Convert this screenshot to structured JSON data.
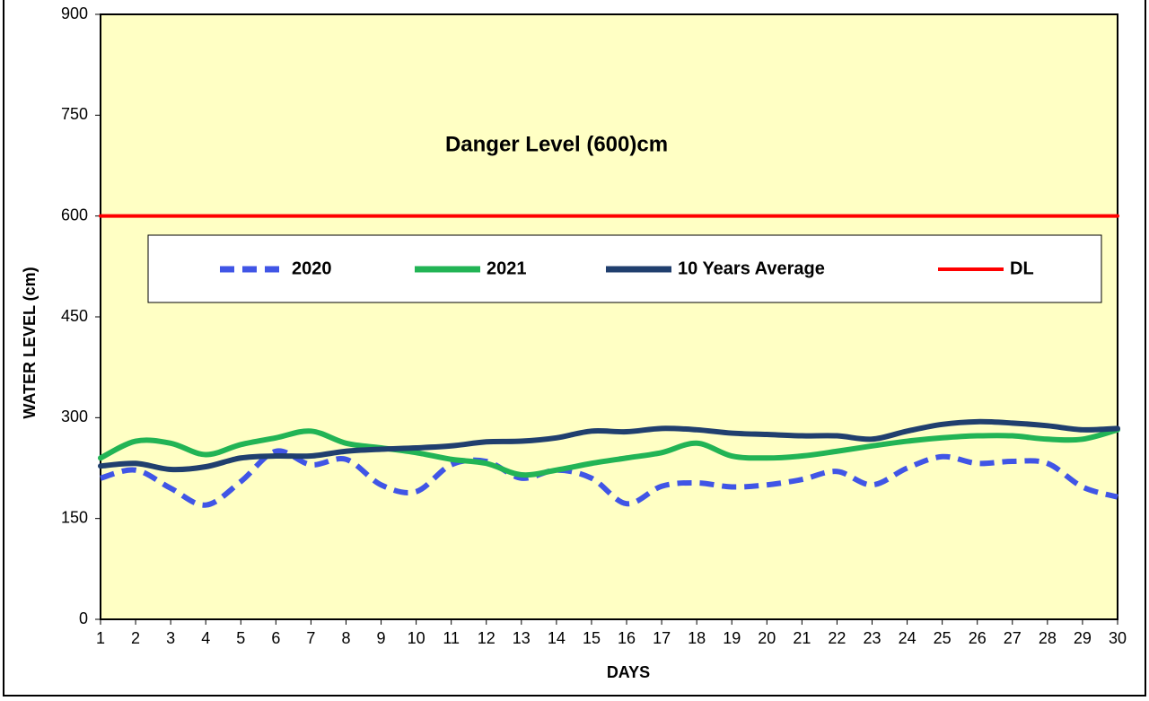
{
  "chart_data": {
    "type": "line",
    "annotation": "Danger Level (600)cm",
    "x_label": "DAYS",
    "y_label": "WATER LEVEL (cm)",
    "x": [
      1,
      2,
      3,
      4,
      5,
      6,
      7,
      8,
      9,
      10,
      11,
      12,
      13,
      14,
      15,
      16,
      17,
      18,
      19,
      20,
      21,
      22,
      23,
      24,
      25,
      26,
      27,
      28,
      29,
      30
    ],
    "xlim": [
      1,
      30
    ],
    "ylim": [
      0,
      900
    ],
    "yticks": [
      0,
      150,
      300,
      450,
      600,
      750,
      900
    ],
    "series": [
      {
        "name": "2020",
        "color": "#4055e6",
        "dash": true,
        "values": [
          210,
          222,
          195,
          170,
          205,
          250,
          230,
          238,
          200,
          190,
          230,
          235,
          210,
          222,
          210,
          172,
          198,
          203,
          197,
          200,
          208,
          220,
          200,
          225,
          242,
          232,
          235,
          232,
          197,
          182
        ]
      },
      {
        "name": "2021",
        "color": "#22b455",
        "dash": false,
        "values": [
          240,
          265,
          262,
          245,
          260,
          270,
          280,
          262,
          255,
          248,
          238,
          232,
          215,
          222,
          232,
          240,
          248,
          262,
          243,
          240,
          243,
          250,
          258,
          265,
          270,
          273,
          273,
          268,
          268,
          282
        ]
      },
      {
        "name": "10 Years Average",
        "color": "#203f6e",
        "dash": false,
        "values": [
          228,
          232,
          223,
          227,
          240,
          243,
          243,
          250,
          253,
          255,
          258,
          264,
          265,
          270,
          280,
          279,
          284,
          282,
          277,
          275,
          273,
          273,
          268,
          280,
          290,
          294,
          292,
          288,
          282,
          284
        ]
      },
      {
        "name": "DL",
        "color": "#ff0000",
        "dash": false,
        "values": [
          600,
          600,
          600,
          600,
          600,
          600,
          600,
          600,
          600,
          600,
          600,
          600,
          600,
          600,
          600,
          600,
          600,
          600,
          600,
          600,
          600,
          600,
          600,
          600,
          600,
          600,
          600,
          600,
          600,
          600
        ]
      }
    ]
  }
}
